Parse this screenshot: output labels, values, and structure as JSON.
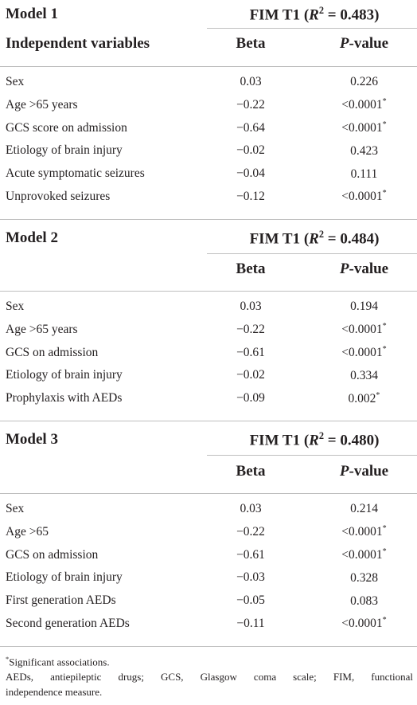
{
  "models": [
    {
      "model_label": "Model 1",
      "fim_prefix": "FIM T1 (",
      "r2_symbol": "R",
      "r2_exp": "2",
      "r2_value": " = 0.483)",
      "var_header": "Independent variables",
      "beta_header": "Beta",
      "p_header_italic": "P",
      "p_header_rest": "-value",
      "rows": [
        {
          "variable": "Sex",
          "beta": "0.03",
          "p": "0.226",
          "sig": ""
        },
        {
          "variable": "Age >65 years",
          "beta": "−0.22",
          "p": "<0.0001",
          "sig": "*"
        },
        {
          "variable": "GCS score on admission",
          "beta": "−0.64",
          "p": "<0.0001",
          "sig": "*"
        },
        {
          "variable": "Etiology of brain injury",
          "beta": "−0.02",
          "p": "0.423",
          "sig": ""
        },
        {
          "variable": "Acute symptomatic seizures",
          "beta": "−0.04",
          "p": "0.111",
          "sig": ""
        },
        {
          "variable": "Unprovoked seizures",
          "beta": "−0.12",
          "p": "<0.0001",
          "sig": "*"
        }
      ]
    },
    {
      "model_label": "Model 2",
      "fim_prefix": "FIM T1 (",
      "r2_symbol": "R",
      "r2_exp": "2",
      "r2_value": " = 0.484)",
      "var_header": "",
      "beta_header": "Beta",
      "p_header_italic": "P",
      "p_header_rest": "-value",
      "rows": [
        {
          "variable": "Sex",
          "beta": "0.03",
          "p": "0.194",
          "sig": ""
        },
        {
          "variable": "Age >65 years",
          "beta": "−0.22",
          "p": "<0.0001",
          "sig": "*"
        },
        {
          "variable": "GCS on admission",
          "beta": "−0.61",
          "p": "<0.0001",
          "sig": "*"
        },
        {
          "variable": "Etiology of brain injury",
          "beta": "−0.02",
          "p": "0.334",
          "sig": ""
        },
        {
          "variable": "Prophylaxis with AEDs",
          "beta": "−0.09",
          "p": "0.002",
          "sig": "*"
        }
      ]
    },
    {
      "model_label": "Model 3",
      "fim_prefix": "FIM T1 (",
      "r2_symbol": "R",
      "r2_exp": "2",
      "r2_value": " = 0.480)",
      "var_header": "",
      "beta_header": "Beta",
      "p_header_italic": "P",
      "p_header_rest": "-value",
      "rows": [
        {
          "variable": "Sex",
          "beta": "0.03",
          "p": "0.214",
          "sig": ""
        },
        {
          "variable": "Age >65",
          "beta": "−0.22",
          "p": "<0.0001",
          "sig": "*"
        },
        {
          "variable": "GCS on admission",
          "beta": "−0.61",
          "p": "<0.0001",
          "sig": "*"
        },
        {
          "variable": "Etiology of brain injury",
          "beta": "−0.03",
          "p": "0.328",
          "sig": ""
        },
        {
          "variable": "First generation AEDs",
          "beta": "−0.05",
          "p": "0.083",
          "sig": ""
        },
        {
          "variable": "Second generation AEDs",
          "beta": "−0.11",
          "p": "<0.0001",
          "sig": "*"
        }
      ]
    }
  ],
  "footnotes": {
    "sig_marker": "*",
    "sig_text": "Significant associations.",
    "abbrev_line1": "AEDs, antiepileptic drugs; GCS, Glasgow coma scale; FIM, functional",
    "abbrev_line2": "independence measure."
  }
}
